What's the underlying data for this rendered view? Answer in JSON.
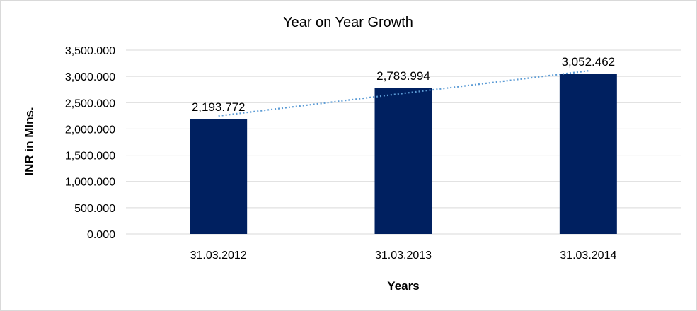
{
  "chart_data": {
    "type": "bar",
    "title": "Year on Year Growth",
    "xlabel": "Years",
    "ylabel": "INR in Mlns.",
    "categories": [
      "31.03.2012",
      "31.03.2013",
      "31.03.2014"
    ],
    "values": [
      2193.772,
      2783.994,
      3052.462
    ],
    "data_labels": [
      "2,193.772",
      "2,783.994",
      "3,052.462"
    ],
    "y_ticks": [
      0,
      500,
      1000,
      1500,
      2000,
      2500,
      3000,
      3500
    ],
    "y_tick_labels": [
      "0.000",
      "500.000",
      "1,000.000",
      "1,500.000",
      "2,000.000",
      "2,500.000",
      "3,000.000",
      "3,500.000"
    ],
    "ylim": [
      0,
      3500
    ],
    "grid": true,
    "legend": "none",
    "trendline": "linear",
    "colors": {
      "bar": "#002060",
      "trendline": "#5b9bd5",
      "grid": "#d9d9d9"
    }
  }
}
